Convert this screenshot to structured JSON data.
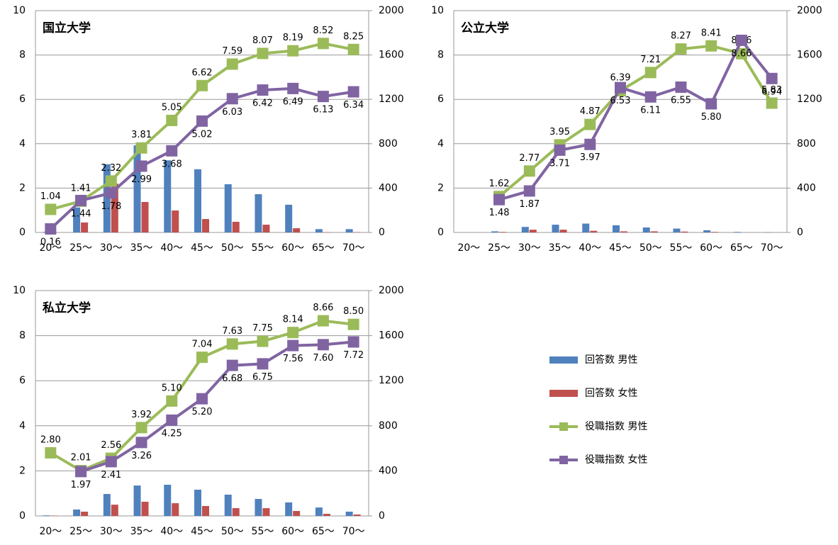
{
  "chart_data": [
    {
      "type": "bar",
      "title": "国立大学",
      "categories": [
        "20〜",
        "25〜",
        "30〜",
        "35〜",
        "40〜",
        "45〜",
        "50〜",
        "55〜",
        "60〜",
        "65〜",
        "70〜"
      ],
      "ylim": [
        0,
        10
      ],
      "yticks": [
        0,
        2,
        4,
        6,
        8,
        10
      ],
      "y2lim": [
        0,
        2000
      ],
      "y2ticks": [
        0,
        400,
        800,
        1200,
        1600,
        2000
      ],
      "grid": true,
      "series": [
        {
          "name": "回答数 男性",
          "type": "bar",
          "axis": "y2",
          "color": "#4f81bd",
          "values": [
            5,
            225,
            615,
            785,
            650,
            570,
            435,
            345,
            250,
            30,
            30
          ]
        },
        {
          "name": "回答数 女性",
          "type": "bar",
          "axis": "y2",
          "color": "#c0504d",
          "values": [
            2,
            90,
            440,
            275,
            198,
            121,
            96,
            70,
            38,
            3,
            3
          ]
        },
        {
          "name": "役職指数 男性",
          "type": "line",
          "color": "#9bbb59",
          "values": [
            1.04,
            1.41,
            2.32,
            3.81,
            5.05,
            6.62,
            7.59,
            8.07,
            8.19,
            8.52,
            8.25
          ],
          "value_labels": [
            "1.04",
            "1.41",
            "2.32",
            "3.81",
            "5.05",
            "6.62",
            "7.59",
            "8.07",
            "8.19",
            "8.52",
            "8.25"
          ]
        },
        {
          "name": "役職指数 女性",
          "type": "line",
          "color": "#8064a2",
          "values": [
            0.16,
            1.44,
            1.78,
            2.99,
            3.68,
            5.02,
            6.03,
            6.42,
            6.49,
            6.13,
            6.34
          ],
          "value_labels": [
            "0.16",
            "1.44",
            "1.78",
            "2.99",
            "3.68",
            "5.02",
            "6.03",
            "6.42",
            "6.49",
            "6.13",
            "6.34"
          ]
        }
      ]
    },
    {
      "type": "bar",
      "title": "公立大学",
      "categories": [
        "20〜",
        "25〜",
        "30〜",
        "35〜",
        "40〜",
        "45〜",
        "50〜",
        "55〜",
        "60〜",
        "65〜",
        "70〜"
      ],
      "ylim": [
        0,
        10
      ],
      "yticks": [
        0,
        2,
        4,
        6,
        8,
        10
      ],
      "y2lim": [
        0,
        2000
      ],
      "y2ticks": [
        0,
        400,
        800,
        1200,
        1600,
        2000
      ],
      "grid": true,
      "series": [
        {
          "name": "回答数 男性",
          "type": "bar",
          "axis": "y2",
          "color": "#4f81bd",
          "values": [
            0,
            10,
            50,
            70,
            80,
            65,
            45,
            35,
            20,
            5,
            3
          ]
        },
        {
          "name": "回答数 女性",
          "type": "bar",
          "axis": "y2",
          "color": "#c0504d",
          "values": [
            0,
            5,
            25,
            25,
            15,
            10,
            10,
            8,
            5,
            0,
            0
          ]
        },
        {
          "name": "役職指数 男性",
          "type": "line",
          "color": "#9bbb59",
          "values": [
            null,
            1.62,
            2.77,
            3.95,
            4.87,
            6.39,
            7.21,
            8.27,
            8.41,
            8.06,
            5.83
          ],
          "value_labels": [
            null,
            "1.62",
            "2.77",
            "3.95",
            "4.87",
            "6.39",
            "7.21",
            "8.27",
            "8.41",
            "8.06",
            "5.83"
          ]
        },
        {
          "name": "役職指数 女性",
          "type": "line",
          "color": "#8064a2",
          "values": [
            null,
            1.48,
            1.87,
            3.71,
            3.97,
            6.53,
            6.11,
            6.55,
            5.8,
            8.66,
            6.94
          ],
          "value_labels": [
            null,
            "1.48",
            "1.87",
            "3.71",
            "3.97",
            "6.53",
            "6.11",
            "6.55",
            "5.80",
            "8.66",
            "6.94"
          ]
        }
      ]
    },
    {
      "type": "bar",
      "title": "私立大学",
      "categories": [
        "20〜",
        "25〜",
        "30〜",
        "35〜",
        "40〜",
        "45〜",
        "50〜",
        "55〜",
        "60〜",
        "65〜",
        "70〜"
      ],
      "ylim": [
        0,
        10
      ],
      "yticks": [
        0,
        2,
        4,
        6,
        8,
        10
      ],
      "y2lim": [
        0,
        2000
      ],
      "y2ticks": [
        0,
        400,
        800,
        1200,
        1600,
        2000
      ],
      "grid": true,
      "series": [
        {
          "name": "回答数 男性",
          "type": "bar",
          "axis": "y2",
          "color": "#4f81bd",
          "values": [
            5,
            57,
            195,
            270,
            277,
            233,
            189,
            151,
            120,
            75,
            38
          ]
        },
        {
          "name": "回答数 女性",
          "type": "bar",
          "axis": "y2",
          "color": "#c0504d",
          "values": [
            3,
            38,
            100,
            126,
            113,
            88,
            69,
            69,
            44,
            19,
            13
          ]
        },
        {
          "name": "役職指数 男性",
          "type": "line",
          "color": "#9bbb59",
          "values": [
            2.8,
            2.01,
            2.56,
            3.92,
            5.1,
            7.04,
            7.63,
            7.75,
            8.14,
            8.66,
            8.5
          ],
          "value_labels": [
            "2.80",
            "2.01",
            "2.56",
            "3.92",
            "5.10",
            "7.04",
            "7.63",
            "7.75",
            "8.14",
            "8.66",
            "8.50"
          ]
        },
        {
          "name": "役職指数 女性",
          "type": "line",
          "color": "#8064a2",
          "values": [
            null,
            1.97,
            2.41,
            3.26,
            4.25,
            5.2,
            6.68,
            6.75,
            7.56,
            7.6,
            7.72
          ],
          "value_labels": [
            null,
            "1.97",
            "2.41",
            "3.26",
            "4.25",
            "5.20",
            "6.68",
            "6.75",
            "7.56",
            "7.60",
            "7.72"
          ]
        }
      ]
    }
  ]
}
